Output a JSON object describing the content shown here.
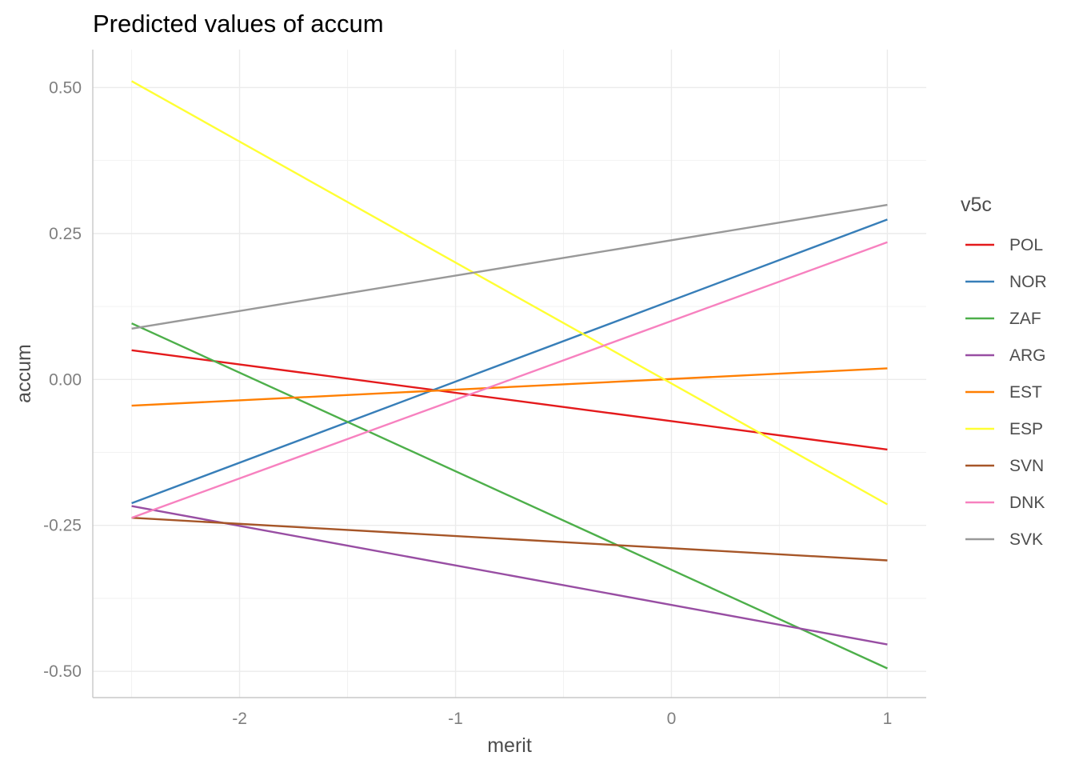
{
  "chart_data": {
    "type": "line",
    "title": "Predicted values of accum",
    "xlabel": "merit",
    "ylabel": "accum",
    "xlim": [
      -2.68,
      1.18
    ],
    "ylim": [
      -0.545,
      0.565
    ],
    "x_ticks": [
      -2,
      -1,
      0,
      1
    ],
    "x_tick_labels": [
      "-2",
      "-1",
      "0",
      "1"
    ],
    "x_minor_ticks": [
      -2.5,
      -1.5,
      -0.5,
      0.5
    ],
    "y_ticks": [
      -0.5,
      -0.25,
      0.0,
      0.25,
      0.5
    ],
    "y_tick_labels": [
      "-0.50",
      "-0.25",
      "0.00",
      "0.25",
      "0.50"
    ],
    "y_minor_ticks": [
      -0.375,
      -0.125,
      0.125,
      0.375
    ],
    "grid": true,
    "legend": {
      "title": "v5c",
      "position": "right"
    },
    "x": [
      -2.5,
      1
    ],
    "series": [
      {
        "name": "POL",
        "color": "#e41a1c",
        "values": [
          0.05,
          -0.12
        ]
      },
      {
        "name": "NOR",
        "color": "#377eb8",
        "values": [
          -0.212,
          0.274
        ]
      },
      {
        "name": "ZAF",
        "color": "#4daf4a",
        "values": [
          0.096,
          -0.495
        ]
      },
      {
        "name": "ARG",
        "color": "#984ea3",
        "values": [
          -0.217,
          -0.454
        ]
      },
      {
        "name": "EST",
        "color": "#ff7f00",
        "values": [
          -0.045,
          0.019
        ]
      },
      {
        "name": "ESP",
        "color": "#ffff33",
        "values": [
          0.511,
          -0.214
        ]
      },
      {
        "name": "SVN",
        "color": "#a65628",
        "values": [
          -0.237,
          -0.31
        ]
      },
      {
        "name": "DNK",
        "color": "#f781bf",
        "values": [
          -0.237,
          0.235
        ]
      },
      {
        "name": "SVK",
        "color": "#999999",
        "values": [
          0.087,
          0.299
        ]
      }
    ]
  }
}
